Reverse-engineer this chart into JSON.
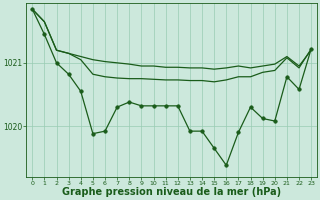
{
  "background_color": "#cce8dc",
  "grid_color": "#99ccb3",
  "line_color": "#1a5c1a",
  "marker_color": "#1a5c1a",
  "xlabel": "Graphe pression niveau de la mer (hPa)",
  "xlabel_fontsize": 7,
  "xticks": [
    0,
    1,
    2,
    3,
    4,
    5,
    6,
    7,
    8,
    9,
    10,
    11,
    12,
    13,
    14,
    15,
    16,
    17,
    18,
    19,
    20,
    21,
    22,
    23
  ],
  "yticks": [
    1020,
    1021
  ],
  "ylim": [
    1019.2,
    1021.95
  ],
  "xlim": [
    -0.5,
    23.5
  ],
  "series": [
    {
      "y": [
        1021.85,
        1021.65,
        1021.2,
        1021.15,
        1021.1,
        1021.05,
        1021.02,
        1021.0,
        1020.98,
        1020.95,
        1020.95,
        1020.93,
        1020.93,
        1020.92,
        1020.92,
        1020.9,
        1020.92,
        1020.95,
        1020.92,
        1020.95,
        1020.98,
        1021.1,
        1020.95,
        1021.2
      ],
      "marker": false
    },
    {
      "y": [
        1021.85,
        1021.65,
        1021.2,
        1021.15,
        1021.05,
        1020.82,
        1020.78,
        1020.76,
        1020.75,
        1020.75,
        1020.74,
        1020.73,
        1020.73,
        1020.72,
        1020.72,
        1020.7,
        1020.73,
        1020.78,
        1020.78,
        1020.85,
        1020.88,
        1021.08,
        1020.92,
        1021.22
      ],
      "marker": false
    },
    {
      "y": [
        1021.85,
        1021.45,
        1021.0,
        1020.82,
        1020.55,
        1019.88,
        1019.92,
        1020.3,
        1020.38,
        1020.32,
        1020.32,
        1020.32,
        1020.32,
        1019.92,
        1019.92,
        1019.65,
        1019.38,
        1019.9,
        1020.3,
        1020.12,
        1020.08,
        1020.78,
        1020.58,
        1021.22
      ],
      "marker": true
    }
  ],
  "marker_size": 2.5,
  "linewidth": 0.9
}
